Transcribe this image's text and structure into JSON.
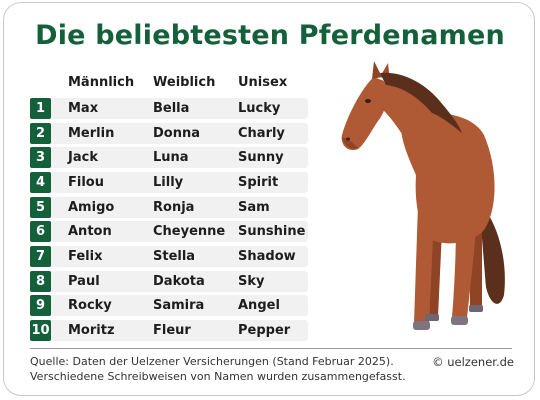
{
  "title": "Die beliebtesten Pferdenamen",
  "columns": [
    "Männlich",
    "Weiblich",
    "Unisex"
  ],
  "rows": [
    {
      "rank": "1",
      "male": "Max",
      "female": "Bella",
      "unisex": "Lucky"
    },
    {
      "rank": "2",
      "male": "Merlin",
      "female": "Donna",
      "unisex": "Charly"
    },
    {
      "rank": "3",
      "male": "Jack",
      "female": "Luna",
      "unisex": "Sunny"
    },
    {
      "rank": "4",
      "male": "Filou",
      "female": "Lilly",
      "unisex": "Spirit"
    },
    {
      "rank": "5",
      "male": "Amigo",
      "female": "Ronja",
      "unisex": "Sam"
    },
    {
      "rank": "6",
      "male": "Anton",
      "female": "Cheyenne",
      "unisex": "Sunshine"
    },
    {
      "rank": "7",
      "male": "Felix",
      "female": "Stella",
      "unisex": "Shadow"
    },
    {
      "rank": "8",
      "male": "Paul",
      "female": "Dakota",
      "unisex": "Sky"
    },
    {
      "rank": "9",
      "male": "Rocky",
      "female": "Samira",
      "unisex": "Angel"
    },
    {
      "rank": "10",
      "male": "Moritz",
      "female": "Fleur",
      "unisex": "Pepper"
    }
  ],
  "footer": {
    "source": "Quelle: Daten der Uelzener Versicherungen (Stand Februar 2025).",
    "note": "Verschiedene Schreibweisen von Namen wurden zusammengefasst.",
    "credit": "© uelzener.de"
  },
  "colors": {
    "accent": "#14603a",
    "row_bg": "#f1f1f1",
    "horse_coat": "#b05a35",
    "horse_mane": "#5a2f1c"
  },
  "illustration": "horse"
}
